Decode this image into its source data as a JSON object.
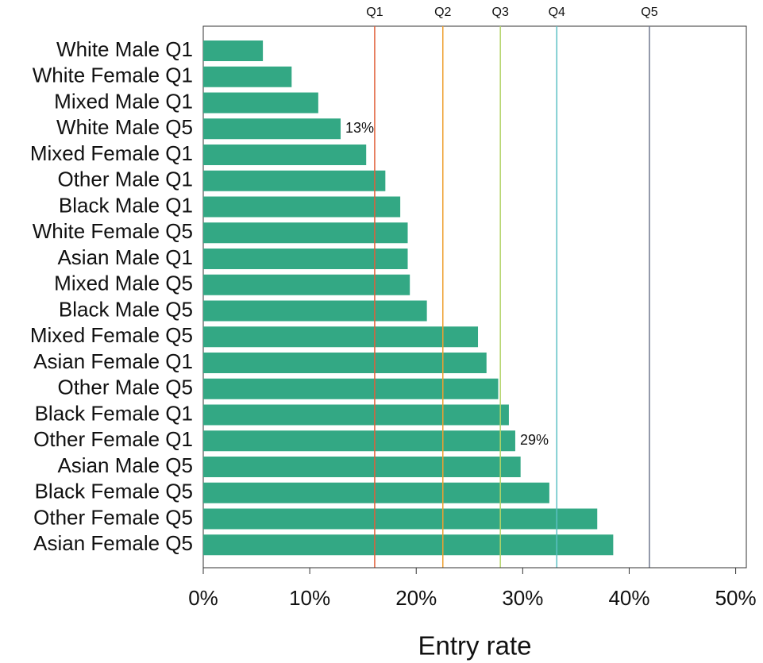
{
  "chart_data": {
    "type": "hbar",
    "x_label": "Entry rate",
    "categories": [
      "White Male Q1",
      "White Female Q1",
      "Mixed Male Q1",
      "White Male Q5",
      "Mixed Female Q1",
      "Other Male Q1",
      "Black Male Q1",
      "White Female Q5",
      "Asian Male Q1",
      "Mixed Male Q5",
      "Black Male Q5",
      "Mixed Female Q5",
      "Asian Female Q1",
      "Other Male Q5",
      "Black Female Q1",
      "Other Female Q1",
      "Asian Male Q5",
      "Black Female Q5",
      "Other Female Q5",
      "Asian Female Q5"
    ],
    "values": [
      5.6,
      8.3,
      10.8,
      12.9,
      15.3,
      17.1,
      18.5,
      19.2,
      19.2,
      19.4,
      21.0,
      25.8,
      26.6,
      27.7,
      28.7,
      29.3,
      29.8,
      32.5,
      37.0,
      38.5
    ],
    "value_labels": [
      null,
      null,
      null,
      "13%",
      null,
      null,
      null,
      null,
      null,
      null,
      null,
      null,
      null,
      null,
      null,
      "29%",
      null,
      null,
      null,
      null
    ],
    "color": "#33a884",
    "xlim": [
      0,
      51
    ],
    "xticks": [
      {
        "value": 0,
        "label": "0%"
      },
      {
        "value": 10,
        "label": "10%"
      },
      {
        "value": 20,
        "label": "20%"
      },
      {
        "value": 30,
        "label": "30%"
      },
      {
        "value": 40,
        "label": "40%"
      },
      {
        "value": 50,
        "label": "50%"
      }
    ],
    "reference_lines": [
      {
        "label": "Q1",
        "value": 16.1,
        "color": "#e0603a"
      },
      {
        "label": "Q2",
        "value": 22.5,
        "color": "#eea030"
      },
      {
        "label": "Q3",
        "value": 27.9,
        "color": "#b4d468"
      },
      {
        "label": "Q4",
        "value": 33.2,
        "color": "#5cc0c4"
      },
      {
        "label": "Q5",
        "value": 41.9,
        "color": "#70788e"
      }
    ]
  }
}
